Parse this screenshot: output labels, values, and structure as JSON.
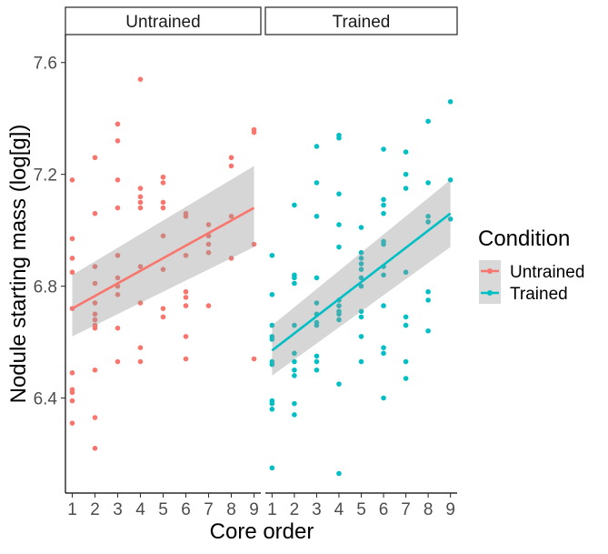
{
  "chart_data": {
    "type": "scatter",
    "xlabel": "Core order",
    "ylabel": "Nodule starting mass (log[g])",
    "xlim": [
      0.7,
      9.3
    ],
    "ylim": [
      6.06,
      7.7
    ],
    "x_ticks": [
      "1",
      "2",
      "3",
      "4",
      "5",
      "6",
      "7",
      "8",
      "9"
    ],
    "y_ticks": [
      "6.4",
      "6.8",
      "7.2",
      "7.6"
    ],
    "facets": [
      "Untrained",
      "Trained"
    ],
    "legend": {
      "title": "Condition",
      "position": "right",
      "entries": [
        {
          "label": "Untrained",
          "color": "#F8766D"
        },
        {
          "label": "Trained",
          "color": "#00BFC4"
        }
      ]
    },
    "series": [
      {
        "name": "Untrained",
        "facet": "Untrained",
        "color": "#F8766D",
        "points": [
          [
            1,
            7.18
          ],
          [
            1,
            6.97
          ],
          [
            1,
            6.9
          ],
          [
            1,
            6.85
          ],
          [
            1,
            6.72
          ],
          [
            1,
            6.49
          ],
          [
            1,
            6.43
          ],
          [
            1,
            6.42
          ],
          [
            1,
            6.39
          ],
          [
            1,
            6.31
          ],
          [
            2,
            7.26
          ],
          [
            2,
            7.06
          ],
          [
            2,
            6.87
          ],
          [
            2,
            6.81
          ],
          [
            2,
            6.74
          ],
          [
            2,
            6.7
          ],
          [
            2,
            6.68
          ],
          [
            2,
            6.66
          ],
          [
            2,
            6.65
          ],
          [
            2,
            6.5
          ],
          [
            2,
            6.33
          ],
          [
            2,
            6.22
          ],
          [
            3,
            7.38
          ],
          [
            3,
            7.32
          ],
          [
            3,
            7.18
          ],
          [
            3,
            7.08
          ],
          [
            3,
            6.91
          ],
          [
            3,
            6.83
          ],
          [
            3,
            6.8
          ],
          [
            3,
            6.77
          ],
          [
            3,
            6.65
          ],
          [
            3,
            6.53
          ],
          [
            4,
            7.54
          ],
          [
            4,
            7.15
          ],
          [
            4,
            7.12
          ],
          [
            4,
            7.1
          ],
          [
            4,
            7.08
          ],
          [
            4,
            6.87
          ],
          [
            4,
            6.74
          ],
          [
            4,
            6.58
          ],
          [
            4,
            6.53
          ],
          [
            5,
            7.19
          ],
          [
            5,
            7.17
          ],
          [
            5,
            7.1
          ],
          [
            5,
            7.08
          ],
          [
            5,
            6.98
          ],
          [
            5,
            6.86
          ],
          [
            5,
            6.72
          ],
          [
            5,
            6.69
          ],
          [
            6,
            7.06
          ],
          [
            6,
            7.05
          ],
          [
            6,
            6.91
          ],
          [
            6,
            6.78
          ],
          [
            6,
            6.76
          ],
          [
            6,
            6.73
          ],
          [
            6,
            6.62
          ],
          [
            6,
            6.54
          ],
          [
            7,
            7.02
          ],
          [
            7,
            6.98
          ],
          [
            7,
            6.95
          ],
          [
            7,
            6.92
          ],
          [
            7,
            6.73
          ],
          [
            8,
            7.26
          ],
          [
            8,
            7.23
          ],
          [
            8,
            7.05
          ],
          [
            8,
            6.9
          ],
          [
            9,
            7.36
          ],
          [
            9,
            7.35
          ],
          [
            9,
            6.95
          ],
          [
            9,
            6.54
          ]
        ],
        "fit": {
          "x": [
            1,
            9
          ],
          "y": [
            6.72,
            7.08
          ],
          "ci_low": [
            6.62,
            6.94
          ],
          "ci_high": [
            6.84,
            7.23
          ]
        }
      },
      {
        "name": "Trained",
        "facet": "Trained",
        "color": "#00BFC4",
        "points": [
          [
            1,
            6.91
          ],
          [
            1,
            6.77
          ],
          [
            1,
            6.66
          ],
          [
            1,
            6.62
          ],
          [
            1,
            6.61
          ],
          [
            1,
            6.53
          ],
          [
            1,
            6.52
          ],
          [
            1,
            6.39
          ],
          [
            1,
            6.38
          ],
          [
            1,
            6.36
          ],
          [
            1,
            6.15
          ],
          [
            2,
            7.09
          ],
          [
            2,
            6.84
          ],
          [
            2,
            6.83
          ],
          [
            2,
            6.81
          ],
          [
            2,
            6.66
          ],
          [
            2,
            6.56
          ],
          [
            2,
            6.53
          ],
          [
            2,
            6.5
          ],
          [
            2,
            6.48
          ],
          [
            2,
            6.38
          ],
          [
            2,
            6.34
          ],
          [
            3,
            7.3
          ],
          [
            3,
            7.17
          ],
          [
            3,
            7.05
          ],
          [
            3,
            6.83
          ],
          [
            3,
            6.74
          ],
          [
            3,
            6.7
          ],
          [
            3,
            6.67
          ],
          [
            3,
            6.66
          ],
          [
            3,
            6.55
          ],
          [
            3,
            6.53
          ],
          [
            3,
            6.5
          ],
          [
            4,
            7.34
          ],
          [
            4,
            7.33
          ],
          [
            4,
            7.13
          ],
          [
            4,
            7.02
          ],
          [
            4,
            6.94
          ],
          [
            4,
            6.75
          ],
          [
            4,
            6.73
          ],
          [
            4,
            6.71
          ],
          [
            4,
            6.7
          ],
          [
            4,
            6.68
          ],
          [
            4,
            6.45
          ],
          [
            4,
            6.13
          ],
          [
            5,
            7.01
          ],
          [
            5,
            6.92
          ],
          [
            5,
            6.9
          ],
          [
            5,
            6.88
          ],
          [
            5,
            6.86
          ],
          [
            5,
            6.83
          ],
          [
            5,
            6.8
          ],
          [
            5,
            6.71
          ],
          [
            5,
            6.69
          ],
          [
            5,
            6.62
          ],
          [
            5,
            6.53
          ],
          [
            6,
            7.29
          ],
          [
            6,
            7.11
          ],
          [
            6,
            7.09
          ],
          [
            6,
            7.06
          ],
          [
            6,
            6.96
          ],
          [
            6,
            6.95
          ],
          [
            6,
            6.87
          ],
          [
            6,
            6.84
          ],
          [
            6,
            6.73
          ],
          [
            6,
            6.58
          ],
          [
            6,
            6.56
          ],
          [
            6,
            6.4
          ],
          [
            7,
            7.28
          ],
          [
            7,
            7.2
          ],
          [
            7,
            7.15
          ],
          [
            7,
            6.85
          ],
          [
            7,
            6.69
          ],
          [
            7,
            6.66
          ],
          [
            7,
            6.53
          ],
          [
            7,
            6.47
          ],
          [
            8,
            7.39
          ],
          [
            8,
            7.17
          ],
          [
            8,
            7.05
          ],
          [
            8,
            7.03
          ],
          [
            8,
            6.78
          ],
          [
            8,
            6.75
          ],
          [
            8,
            6.64
          ],
          [
            9,
            7.46
          ],
          [
            9,
            7.18
          ],
          [
            9,
            7.04
          ]
        ],
        "fit": {
          "x": [
            1,
            9
          ],
          "y": [
            6.57,
            7.06
          ],
          "ci_low": [
            6.48,
            6.94
          ],
          "ci_high": [
            6.66,
            7.18
          ]
        }
      }
    ]
  }
}
